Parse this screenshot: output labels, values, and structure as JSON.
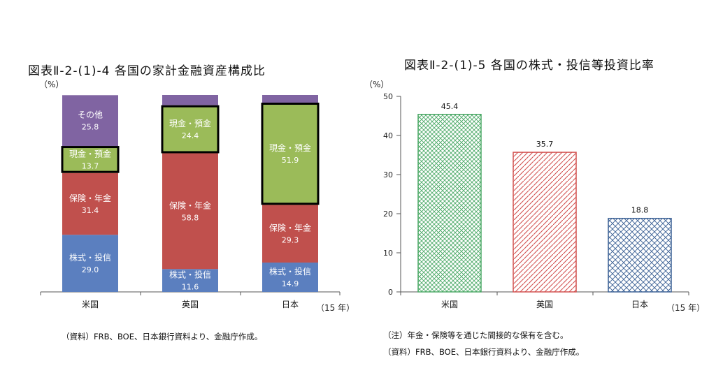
{
  "left_chart": {
    "title": "図表Ⅱ-2-(1)-4 各国の家計金融資産構成比",
    "unit": "（%）",
    "year": "（15 年）",
    "source": "（資料）FRB、BOE、日本銀行資料より、金融庁作成。"
  },
  "right_chart": {
    "title": "図表Ⅱ-2-(1)-5 各国の株式・投信等投資比率",
    "unit": "（%）",
    "year": "（15 年）",
    "note": "（注）年金・保険等を通じた間接的な保有を含む。",
    "source": "（資料）FRB、BOE、日本銀行資料より、金融庁作成。"
  },
  "chart_data": [
    {
      "type": "bar",
      "stacked": true,
      "percent_stacked": true,
      "categories": [
        "米国",
        "英国",
        "日本"
      ],
      "series": [
        {
          "name": "株式・投信",
          "values": [
            29.0,
            11.6,
            14.9
          ],
          "color": "#5b7fbf"
        },
        {
          "name": "保険・年金",
          "values": [
            31.4,
            58.8,
            29.3
          ],
          "color": "#c0504d"
        },
        {
          "name": "現金・預金",
          "values": [
            13.7,
            24.4,
            51.9
          ],
          "color": "#9bbb59",
          "highlighted": true
        },
        {
          "name": "その他",
          "values": [
            25.8,
            5.2,
            3.9
          ],
          "color": "#8064a2",
          "labels_shown": [
            true,
            false,
            false
          ]
        }
      ]
    },
    {
      "type": "bar",
      "categories": [
        "米国",
        "英国",
        "日本"
      ],
      "values": [
        45.4,
        35.7,
        18.8
      ],
      "ylim": [
        0,
        50
      ],
      "yticks": [
        0,
        10,
        20,
        30,
        40,
        50
      ],
      "colors": [
        "#4aa865",
        "#d2514f",
        "#3d6296"
      ],
      "patterns": [
        "crosshatch",
        "diagonal",
        "weave"
      ]
    }
  ]
}
